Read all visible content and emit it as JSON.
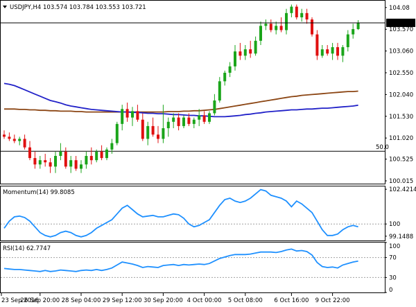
{
  "header": {
    "symbol_line": "USDJPY,H4  103.574 103.784 103.553 103.721"
  },
  "colors": {
    "bull": "#1aa51a",
    "bear": "#e01010",
    "ma_fast": "#2121c8",
    "ma_slow": "#8b4513",
    "indicator": "#1e90ff",
    "level": "#000000",
    "grid_dotted": "#a0a0a0"
  },
  "chart_data": [
    {
      "type": "candlestick",
      "title": "USDJPY,H4",
      "ohlc_header": {
        "open": 103.574,
        "high": 103.784,
        "low": 103.553,
        "close": 103.721
      },
      "y_ticks": [
        "104.08",
        "103.570",
        "103.060",
        "102.550",
        "102.040",
        "101.530",
        "101.020",
        "100.525",
        "100.015"
      ],
      "y_tick_values": [
        104.08,
        103.57,
        103.06,
        102.55,
        102.04,
        101.53,
        101.02,
        100.525,
        100.015
      ],
      "ylim": [
        99.95,
        104.24
      ],
      "current_price_label": "103.721",
      "current_price": 103.721,
      "level_label": "50.0",
      "level_value": 100.71,
      "candles": [
        [
          101.1,
          101.2,
          101.0,
          101.05
        ],
        [
          101.05,
          101.15,
          100.95,
          101.0
        ],
        [
          101.0,
          101.1,
          100.9,
          100.95
        ],
        [
          100.95,
          101.05,
          100.85,
          101.0
        ],
        [
          101.0,
          101.1,
          100.75,
          100.8
        ],
        [
          100.8,
          100.95,
          100.5,
          100.55
        ],
        [
          100.55,
          100.7,
          100.3,
          100.4
        ],
        [
          100.4,
          100.6,
          100.3,
          100.5
        ],
        [
          100.5,
          100.65,
          100.35,
          100.45
        ],
        [
          100.45,
          100.55,
          100.2,
          100.35
        ],
        [
          100.35,
          100.7,
          100.2,
          100.6
        ],
        [
          100.6,
          100.9,
          100.5,
          100.7
        ],
        [
          100.7,
          100.8,
          100.3,
          100.35
        ],
        [
          100.35,
          100.6,
          100.2,
          100.5
        ],
        [
          100.5,
          100.6,
          100.25,
          100.3
        ],
        [
          100.3,
          100.5,
          100.2,
          100.4
        ],
        [
          100.4,
          100.7,
          100.3,
          100.6
        ],
        [
          100.6,
          100.8,
          100.4,
          100.5
        ],
        [
          100.5,
          100.75,
          100.45,
          100.7
        ],
        [
          100.7,
          100.85,
          100.5,
          100.55
        ],
        [
          100.55,
          100.8,
          100.5,
          100.75
        ],
        [
          100.75,
          101.0,
          100.65,
          100.9
        ],
        [
          100.9,
          101.4,
          100.85,
          101.35
        ],
        [
          101.35,
          101.8,
          101.2,
          101.7
        ],
        [
          101.7,
          101.85,
          101.4,
          101.5
        ],
        [
          101.5,
          101.75,
          101.3,
          101.65
        ],
        [
          101.65,
          101.8,
          101.4,
          101.45
        ],
        [
          101.45,
          101.6,
          100.95,
          101.0
        ],
        [
          101.0,
          101.4,
          100.85,
          101.3
        ],
        [
          101.3,
          101.5,
          101.05,
          101.1
        ],
        [
          101.1,
          101.3,
          100.9,
          101.0
        ],
        [
          101.0,
          101.8,
          100.9,
          101.25
        ],
        [
          101.25,
          101.5,
          101.05,
          101.4
        ],
        [
          101.4,
          101.6,
          101.25,
          101.5
        ],
        [
          101.5,
          101.6,
          101.2,
          101.3
        ],
        [
          101.3,
          101.55,
          101.25,
          101.5
        ],
        [
          101.5,
          101.6,
          101.3,
          101.35
        ],
        [
          101.35,
          101.5,
          101.25,
          101.45
        ],
        [
          101.45,
          101.7,
          101.3,
          101.55
        ],
        [
          101.55,
          101.65,
          101.35,
          101.4
        ],
        [
          101.4,
          101.65,
          101.35,
          101.6
        ],
        [
          101.6,
          102.05,
          101.55,
          101.9
        ],
        [
          101.9,
          102.45,
          101.85,
          102.35
        ],
        [
          102.35,
          102.6,
          102.25,
          102.55
        ],
        [
          102.55,
          102.8,
          102.45,
          102.7
        ],
        [
          102.7,
          103.2,
          102.6,
          103.05
        ],
        [
          103.05,
          103.25,
          102.85,
          102.95
        ],
        [
          102.95,
          103.2,
          102.85,
          103.1
        ],
        [
          103.1,
          103.3,
          102.9,
          103.0
        ],
        [
          103.0,
          103.4,
          102.95,
          103.3
        ],
        [
          103.3,
          103.75,
          103.2,
          103.65
        ],
        [
          103.65,
          103.8,
          103.55,
          103.7
        ],
        [
          103.7,
          103.8,
          103.5,
          103.55
        ],
        [
          103.55,
          103.75,
          103.45,
          103.65
        ],
        [
          103.65,
          103.85,
          103.5,
          103.55
        ],
        [
          103.55,
          104.05,
          103.45,
          103.95
        ],
        [
          103.95,
          104.15,
          103.85,
          104.1
        ],
        [
          104.1,
          104.15,
          103.8,
          103.85
        ],
        [
          103.85,
          104.05,
          103.75,
          103.95
        ],
        [
          103.95,
          104.05,
          103.7,
          103.8
        ],
        [
          103.8,
          103.85,
          103.4,
          103.45
        ],
        [
          103.45,
          103.55,
          102.85,
          102.95
        ],
        [
          102.95,
          103.2,
          102.9,
          103.1
        ],
        [
          103.1,
          103.2,
          102.95,
          103.0
        ],
        [
          103.0,
          103.25,
          102.85,
          103.15
        ],
        [
          103.15,
          103.25,
          102.85,
          102.95
        ],
        [
          102.95,
          103.2,
          102.8,
          103.15
        ],
        [
          103.15,
          103.55,
          103.05,
          103.45
        ],
        [
          103.45,
          103.7,
          103.35,
          103.574
        ],
        [
          103.574,
          103.784,
          103.553,
          103.721
        ]
      ],
      "ma_fast": [
        102.3,
        102.28,
        102.25,
        102.2,
        102.15,
        102.1,
        102.05,
        102.0,
        101.95,
        101.9,
        101.87,
        101.84,
        101.8,
        101.77,
        101.75,
        101.73,
        101.71,
        101.69,
        101.68,
        101.67,
        101.66,
        101.65,
        101.64,
        101.63,
        101.63,
        101.62,
        101.62,
        101.61,
        101.6,
        101.6,
        101.59,
        101.59,
        101.58,
        101.57,
        101.57,
        101.56,
        101.55,
        101.55,
        101.54,
        101.54,
        101.53,
        101.52,
        101.52,
        101.52,
        101.53,
        101.54,
        101.55,
        101.57,
        101.58,
        101.6,
        101.61,
        101.63,
        101.64,
        101.65,
        101.66,
        101.67,
        101.68,
        101.68,
        101.69,
        101.7,
        101.7,
        101.71,
        101.72,
        101.72,
        101.73,
        101.74,
        101.75,
        101.76,
        101.77,
        101.79
      ],
      "ma_slow": [
        101.7,
        101.7,
        101.7,
        101.69,
        101.69,
        101.68,
        101.68,
        101.67,
        101.67,
        101.66,
        101.66,
        101.65,
        101.65,
        101.65,
        101.64,
        101.64,
        101.63,
        101.63,
        101.63,
        101.63,
        101.63,
        101.63,
        101.63,
        101.63,
        101.63,
        101.63,
        101.63,
        101.63,
        101.63,
        101.63,
        101.63,
        101.63,
        101.64,
        101.64,
        101.64,
        101.65,
        101.65,
        101.66,
        101.66,
        101.67,
        101.68,
        101.69,
        101.71,
        101.73,
        101.75,
        101.77,
        101.79,
        101.81,
        101.83,
        101.85,
        101.87,
        101.89,
        101.91,
        101.93,
        101.95,
        101.97,
        101.99,
        102.0,
        102.02,
        102.03,
        102.04,
        102.05,
        102.06,
        102.07,
        102.08,
        102.09,
        102.1,
        102.11,
        102.11,
        102.12
      ]
    },
    {
      "type": "line",
      "title": "Momentum(14) 99.8085",
      "name": "Momentum(14)",
      "last_value": 99.8085,
      "y_ticks": [
        "102.4214",
        "100",
        "99.1488"
      ],
      "y_tick_values": [
        102.4214,
        100,
        99.1488
      ],
      "ylim": [
        98.85,
        102.62
      ],
      "reference_level": 100,
      "values": [
        99.7,
        100.2,
        100.5,
        100.55,
        100.45,
        100.2,
        99.8,
        99.4,
        99.2,
        99.1,
        99.2,
        99.4,
        99.5,
        99.4,
        99.2,
        99.1,
        99.2,
        99.4,
        99.7,
        99.9,
        100.1,
        100.3,
        100.7,
        101.1,
        101.3,
        101.0,
        100.7,
        100.5,
        100.55,
        100.6,
        100.5,
        100.5,
        100.6,
        100.7,
        100.65,
        100.4,
        100.0,
        99.8,
        99.9,
        100.1,
        100.3,
        100.8,
        101.3,
        101.7,
        101.8,
        101.6,
        101.5,
        101.6,
        101.8,
        102.1,
        102.4,
        102.3,
        102.0,
        101.9,
        101.8,
        101.6,
        101.2,
        101.6,
        101.4,
        101.1,
        100.8,
        100.2,
        99.6,
        99.2,
        99.2,
        99.3,
        99.6,
        99.8,
        99.9,
        99.8085
      ]
    },
    {
      "type": "line",
      "title": "RSI(14) 62.7747",
      "name": "RSI(14)",
      "last_value": 62.7747,
      "y_ticks": [
        "100",
        "70",
        "30",
        "0"
      ],
      "y_tick_values": [
        100,
        70,
        30,
        0
      ],
      "ylim": [
        0,
        100
      ],
      "reference_levels": [
        70,
        30
      ],
      "values": [
        48,
        47,
        46,
        46,
        45,
        44,
        43,
        42,
        44,
        42,
        43,
        45,
        44,
        43,
        42,
        44,
        45,
        44,
        46,
        44,
        46,
        49,
        55,
        61,
        59,
        57,
        54,
        50,
        52,
        51,
        50,
        54,
        55,
        56,
        54,
        56,
        55,
        56,
        57,
        56,
        58,
        63,
        68,
        71,
        74,
        76,
        76,
        76,
        77,
        79,
        81,
        81,
        81,
        80,
        82,
        85,
        87,
        83,
        84,
        82,
        75,
        60,
        52,
        50,
        51,
        49,
        55,
        58,
        61,
        62.7747
      ]
    },
    {
      "type": "axis",
      "x_ticks": [
        "23 Sep 2016",
        "26 Sep 20:00",
        "28 Sep 04:00",
        "29 Sep 12:00",
        "30 Sep 20:00",
        "4 Oct 00:00",
        "5 Oct 08:00",
        "6 Oct 16:00",
        "9 Oct 22:00"
      ],
      "x_tick_bar_index": [
        0,
        7,
        15,
        23,
        31,
        39,
        47,
        56,
        64
      ]
    }
  ]
}
